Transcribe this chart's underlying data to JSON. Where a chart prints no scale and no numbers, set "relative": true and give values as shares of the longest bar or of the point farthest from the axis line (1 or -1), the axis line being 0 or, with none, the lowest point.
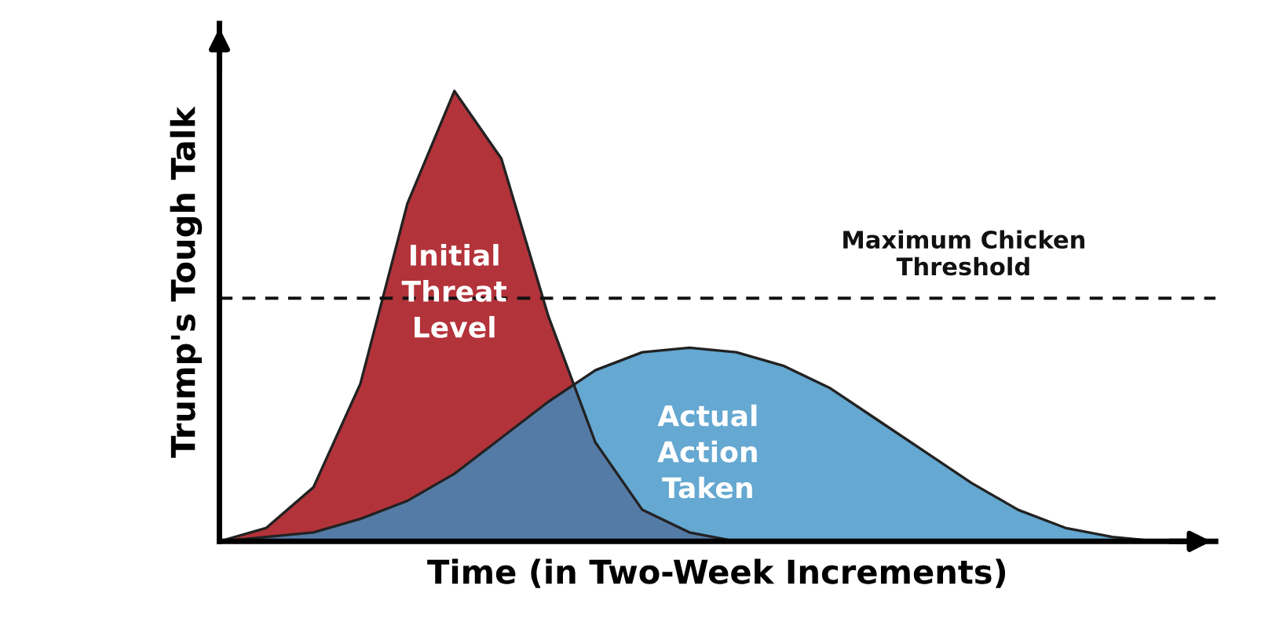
{
  "chart_data": {
    "type": "area",
    "relative": true,
    "xlabel": "Time (in Two-Week Increments)",
    "ylabel": "Trump's Tough Talk",
    "categories": [
      null,
      null,
      null,
      null,
      null,
      null,
      null,
      null,
      null,
      null,
      null,
      null,
      null,
      null,
      null,
      null,
      null,
      null,
      null,
      null,
      null,
      null
    ],
    "series": [
      {
        "name": "Initial Threat Level",
        "color": "#b3333a",
        "values": [
          0,
          0.03,
          0.12,
          0.35,
          0.75,
          1.0,
          0.85,
          0.5,
          0.22,
          0.07,
          0.02,
          0,
          0,
          0,
          0,
          0,
          0,
          0,
          0,
          0,
          0,
          0
        ]
      },
      {
        "name": "Actual Action Taken",
        "color": "#3a8fc4",
        "values": [
          0,
          0.01,
          0.02,
          0.05,
          0.09,
          0.15,
          0.23,
          0.31,
          0.38,
          0.42,
          0.43,
          0.42,
          0.39,
          0.34,
          0.27,
          0.2,
          0.13,
          0.07,
          0.03,
          0.01,
          0,
          0
        ]
      }
    ],
    "ref_lines": [
      {
        "axis": "y",
        "value": 0.54,
        "label": "Maximum Chicken Threshold",
        "color": "#111111",
        "line_style": "dashed"
      }
    ],
    "legend": false
  }
}
